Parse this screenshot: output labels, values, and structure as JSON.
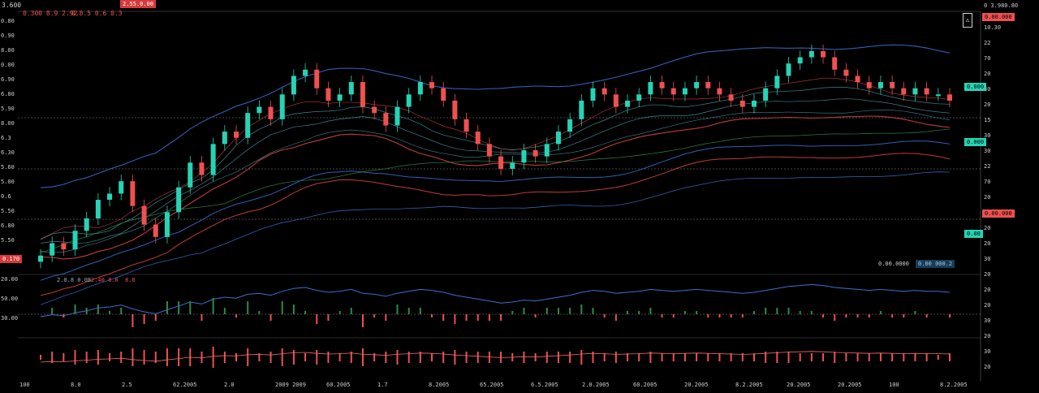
{
  "header": {
    "symbol_readout": "3.600",
    "ohlc_readout": "0.300 8.9 2.92",
    "indicator_readout": "0.8.5 0.6 0.3",
    "value_badge": "2.55.0.00"
  },
  "right_scale_top": "0 3.980.80",
  "corner_button": "⚠",
  "colors": {
    "background": "#000000",
    "up": "#26d4b5",
    "down": "#f05050",
    "ma_blue": "#3a6fd0",
    "ma_red": "#e04545",
    "ma_teal": "#4a9aa8",
    "ma_green": "#2e8a4a"
  },
  "left_axis": [
    "0.80",
    "0.90",
    "8.00",
    "0.00",
    "6.90",
    "6.80",
    "5.90",
    "8.00",
    "6.3",
    "6.30",
    "5.60",
    "5.00",
    "0.6",
    "5.50",
    "6.80",
    "5.50"
  ],
  "right_axis": [
    "10.30",
    "22",
    "70",
    "20",
    "30",
    "20",
    "15",
    "30",
    "30",
    "22",
    "70",
    "20",
    "20",
    "20",
    "20",
    "30",
    "20",
    "20",
    "20",
    "30",
    "20",
    "30",
    "20"
  ],
  "right_tags": [
    {
      "text": "0.00.000",
      "color": "down"
    },
    {
      "text": "0.000",
      "color": "up"
    },
    {
      "text": "0.000",
      "color": "up"
    },
    {
      "text": "0.00.000",
      "color": "down"
    },
    {
      "text": "0.00",
      "color": "up"
    }
  ],
  "left_tag": "0.170",
  "x_axis": [
    "100",
    "8.0",
    "2.5",
    "62.2005",
    "2.0",
    "2009 2009",
    "60.2005",
    "1.7",
    "8.2005",
    "65.2005",
    "6.5.2005",
    "2.0.2005",
    "60.2005",
    "20.2005",
    "8.2.2005",
    "20.2005",
    "20.2005",
    "100",
    "8.2.2005"
  ],
  "panel2_legend": [
    "2.0.8 0.08",
    "2.40 8.0",
    "8.0"
  ],
  "panel2_axis": [
    "2.0",
    "2.5",
    "0.6"
  ],
  "panel3_axis": [
    "0.60",
    "0.5"
  ],
  "panel2_left": [
    "20.00",
    "50.00",
    "30.00"
  ],
  "info_box": {
    "label": "0.00.0000",
    "value": "0.00 000.2"
  },
  "chart_data": {
    "type": "line",
    "x": [
      0,
      1,
      2,
      3,
      4,
      5,
      6,
      7,
      8,
      9,
      10,
      11,
      12,
      13,
      14,
      15,
      16,
      17,
      18,
      19,
      20,
      21,
      22,
      23,
      24,
      25,
      26,
      27,
      28,
      29,
      30,
      31,
      32,
      33,
      34,
      35,
      36,
      37,
      38,
      39,
      40,
      41,
      42,
      43,
      44,
      45,
      46,
      47,
      48,
      49,
      50,
      51,
      52,
      53,
      54,
      55,
      56,
      57,
      58,
      59,
      60,
      61,
      62,
      63,
      64,
      65,
      66,
      67,
      68,
      69,
      70,
      71,
      72,
      73,
      74,
      75,
      76,
      77,
      78,
      79
    ],
    "series": [
      {
        "values": [
          6.0,
          6.2,
          6.1,
          6.4,
          6.6,
          6.9,
          7.0,
          7.2,
          6.8,
          6.5,
          6.3,
          6.7,
          7.1,
          7.5,
          7.3,
          7.8,
          8.0,
          7.9,
          8.3,
          8.4,
          8.2,
          8.6,
          8.9,
          9.0,
          8.7,
          8.5,
          8.6,
          8.8,
          8.4,
          8.3,
          8.1,
          8.4,
          8.6,
          8.8,
          8.7,
          8.5,
          8.2,
          8.0,
          7.8,
          7.6,
          7.4,
          7.5,
          7.7,
          7.6,
          7.8,
          8.0,
          8.2,
          8.5,
          8.7,
          8.6,
          8.4,
          8.5,
          8.6,
          8.8,
          8.7,
          8.6,
          8.7,
          8.8,
          8.7,
          8.6,
          8.5,
          8.4,
          8.5,
          8.7,
          8.9,
          9.1,
          9.2,
          9.3,
          9.2,
          9.0,
          8.9,
          8.8,
          8.7,
          8.8,
          8.7,
          8.6,
          8.7,
          8.6,
          8.6,
          8.5
        ]
      }
    ]
  }
}
